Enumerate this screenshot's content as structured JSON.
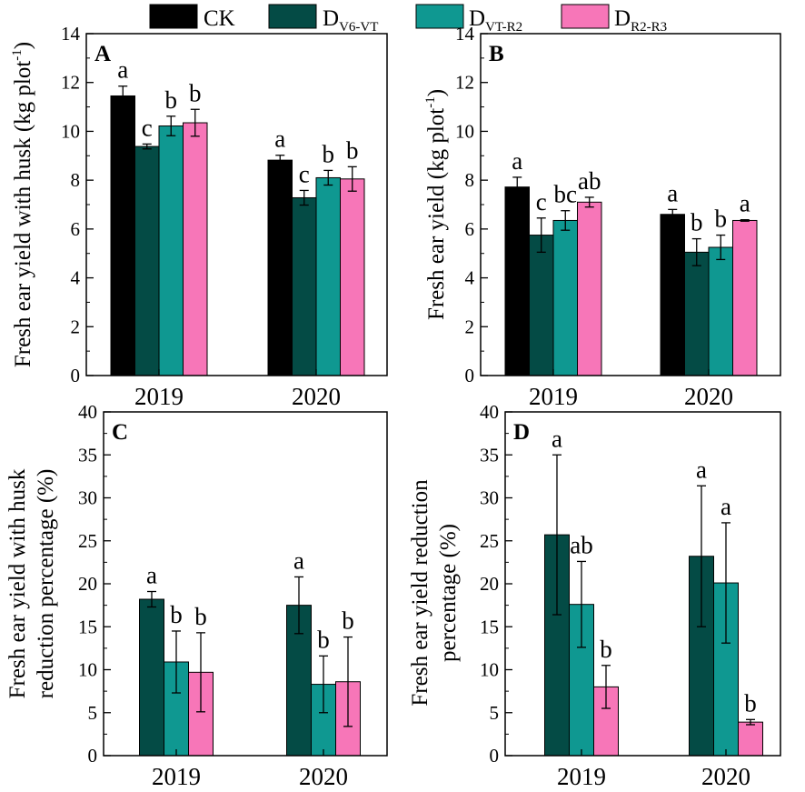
{
  "legend": [
    {
      "label": "CK",
      "sub": "",
      "color": "#000000"
    },
    {
      "label": "D",
      "sub": "V6-VT",
      "color": "#044b45"
    },
    {
      "label": "D",
      "sub": "VT-R2",
      "color": "#0f9891"
    },
    {
      "label": "D",
      "sub": "R2-R3",
      "color": "#f776b8"
    }
  ],
  "chart_data": [
    {
      "panel": "A",
      "type": "bar",
      "ylabel": "Fresh ear yield with husk (kg plot",
      "ylabel_sup": "-1",
      "ylabel_end": ")",
      "ylim": [
        0,
        14
      ],
      "yticks": [
        0,
        2,
        4,
        6,
        8,
        10,
        12,
        14
      ],
      "categories": [
        "2019",
        "2020"
      ],
      "series": [
        {
          "name": "CK",
          "color": "#000000",
          "values": [
            11.45,
            8.82
          ],
          "errors": [
            0.4,
            0.2
          ],
          "letters": [
            "a",
            "a"
          ]
        },
        {
          "name": "DV6-VT",
          "color": "#044b45",
          "values": [
            9.38,
            7.28
          ],
          "errors": [
            0.1,
            0.3
          ],
          "letters": [
            "c",
            "c"
          ]
        },
        {
          "name": "DVT-R2",
          "color": "#0f9891",
          "values": [
            10.22,
            8.1
          ],
          "errors": [
            0.4,
            0.3
          ],
          "letters": [
            "b",
            "b"
          ]
        },
        {
          "name": "DR2-R3",
          "color": "#f776b8",
          "values": [
            10.35,
            8.05
          ],
          "errors": [
            0.55,
            0.5
          ],
          "letters": [
            "b",
            "b"
          ]
        }
      ]
    },
    {
      "panel": "B",
      "type": "bar",
      "ylabel": "Fresh ear yield (kg plot",
      "ylabel_sup": "-1",
      "ylabel_end": ")",
      "ylim": [
        0,
        14
      ],
      "yticks": [
        0,
        2,
        4,
        6,
        8,
        10,
        12,
        14
      ],
      "categories": [
        "2019",
        "2020"
      ],
      "series": [
        {
          "name": "CK",
          "color": "#000000",
          "values": [
            7.72,
            6.6
          ],
          "errors": [
            0.4,
            0.2
          ],
          "letters": [
            "a",
            "a"
          ]
        },
        {
          "name": "DV6-VT",
          "color": "#044b45",
          "values": [
            5.75,
            5.05
          ],
          "errors": [
            0.7,
            0.55
          ],
          "letters": [
            "c",
            "b"
          ]
        },
        {
          "name": "DVT-R2",
          "color": "#0f9891",
          "values": [
            6.35,
            5.25
          ],
          "errors": [
            0.4,
            0.5
          ],
          "letters": [
            "bc",
            "b"
          ]
        },
        {
          "name": "DR2-R3",
          "color": "#f776b8",
          "values": [
            7.1,
            6.35
          ],
          "errors": [
            0.2,
            0.03
          ],
          "letters": [
            "ab",
            "a"
          ]
        }
      ]
    },
    {
      "panel": "C",
      "type": "bar",
      "ylabel": "Fresh ear yield with husk",
      "ylabel2": "reduction percentage (%)",
      "ylim": [
        0,
        40
      ],
      "yticks": [
        0,
        5,
        10,
        15,
        20,
        25,
        30,
        35,
        40
      ],
      "categories": [
        "2019",
        "2020"
      ],
      "series": [
        {
          "name": "DV6-VT",
          "color": "#044b45",
          "values": [
            18.2,
            17.5
          ],
          "errors": [
            0.9,
            3.3
          ],
          "letters": [
            "a",
            "a"
          ]
        },
        {
          "name": "DVT-R2",
          "color": "#0f9891",
          "values": [
            10.9,
            8.3
          ],
          "errors": [
            3.6,
            3.3
          ],
          "letters": [
            "b",
            "b"
          ]
        },
        {
          "name": "DR2-R3",
          "color": "#f776b8",
          "values": [
            9.7,
            8.6
          ],
          "errors": [
            4.6,
            5.2
          ],
          "letters": [
            "b",
            "b"
          ]
        }
      ]
    },
    {
      "panel": "D",
      "type": "bar",
      "ylabel": "Fresh ear yield reduction",
      "ylabel2": "percentage (%)",
      "ylim": [
        0,
        40
      ],
      "yticks": [
        0,
        5,
        10,
        15,
        20,
        25,
        30,
        35,
        40
      ],
      "categories": [
        "2019",
        "2020"
      ],
      "series": [
        {
          "name": "DV6-VT",
          "color": "#044b45",
          "values": [
            25.7,
            23.2
          ],
          "errors": [
            9.3,
            8.2
          ],
          "letters": [
            "a",
            "a"
          ]
        },
        {
          "name": "DVT-R2",
          "color": "#0f9891",
          "values": [
            17.6,
            20.1
          ],
          "errors": [
            5.0,
            7.0
          ],
          "letters": [
            "ab",
            "a"
          ]
        },
        {
          "name": "DR2-R3",
          "color": "#f776b8",
          "values": [
            8.0,
            3.9
          ],
          "errors": [
            2.5,
            0.3
          ],
          "letters": [
            "b",
            "b"
          ]
        }
      ]
    }
  ]
}
